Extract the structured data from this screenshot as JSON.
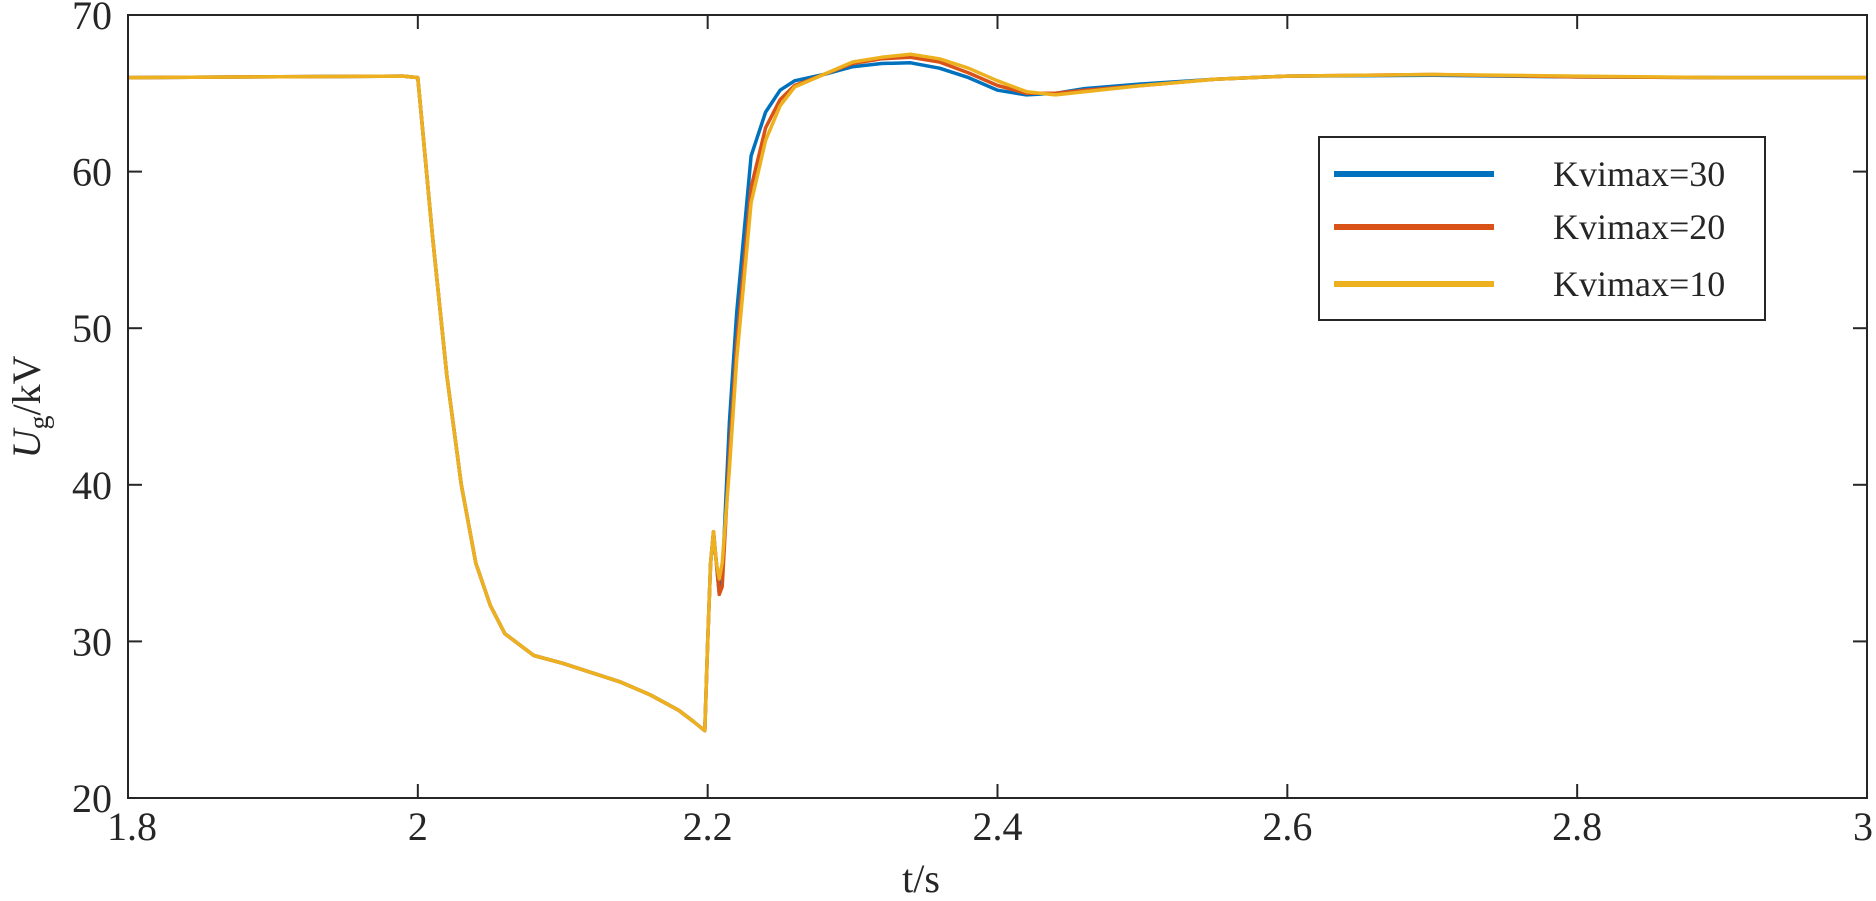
{
  "chart_data": {
    "type": "line",
    "xlabel": "t/s",
    "ylabel": {
      "main": "U",
      "sub": "g",
      "unit": "/kV"
    },
    "xlim": [
      1.8,
      3.0
    ],
    "ylim": [
      20,
      70
    ],
    "xticks": [
      1.8,
      2,
      2.2,
      2.4,
      2.6,
      2.8,
      3
    ],
    "xtick_labels": [
      "1.8",
      "2",
      "2.2",
      "2.4",
      "2.6",
      "2.8",
      "3"
    ],
    "yticks": [
      20,
      30,
      40,
      50,
      60,
      70
    ],
    "ytick_labels": [
      "20",
      "30",
      "40",
      "50",
      "60",
      "70"
    ],
    "grid": false,
    "legend_position": "upper-right",
    "series": [
      {
        "name": "Kvimax=30",
        "color": "#0072BD",
        "points": [
          [
            1.8,
            66
          ],
          [
            1.99,
            66.1
          ],
          [
            2.0,
            66
          ],
          [
            2.01,
            56
          ],
          [
            2.02,
            47
          ],
          [
            2.03,
            40
          ],
          [
            2.04,
            35
          ],
          [
            2.05,
            32.3
          ],
          [
            2.06,
            30.5
          ],
          [
            2.08,
            29.1
          ],
          [
            2.1,
            28.6
          ],
          [
            2.12,
            28
          ],
          [
            2.14,
            27.4
          ],
          [
            2.16,
            26.6
          ],
          [
            2.18,
            25.6
          ],
          [
            2.19,
            24.9
          ],
          [
            2.198,
            24.3
          ],
          [
            2.2,
            30
          ],
          [
            2.202,
            35
          ],
          [
            2.204,
            37
          ],
          [
            2.206,
            35
          ],
          [
            2.208,
            33
          ],
          [
            2.21,
            34
          ],
          [
            2.215,
            44
          ],
          [
            2.22,
            51
          ],
          [
            2.225,
            56
          ],
          [
            2.23,
            61
          ],
          [
            2.24,
            63.8
          ],
          [
            2.25,
            65.2
          ],
          [
            2.26,
            65.8
          ],
          [
            2.28,
            66.2
          ],
          [
            2.3,
            66.7
          ],
          [
            2.32,
            66.9
          ],
          [
            2.34,
            66.95
          ],
          [
            2.36,
            66.6
          ],
          [
            2.38,
            66
          ],
          [
            2.4,
            65.2
          ],
          [
            2.42,
            64.9
          ],
          [
            2.44,
            65
          ],
          [
            2.46,
            65.3
          ],
          [
            2.5,
            65.6
          ],
          [
            2.55,
            65.9
          ],
          [
            2.6,
            66.1
          ],
          [
            2.7,
            66.15
          ],
          [
            2.8,
            66.05
          ],
          [
            2.9,
            66
          ],
          [
            3.0,
            66
          ]
        ]
      },
      {
        "name": "Kvimax=20",
        "color": "#D95319",
        "points": [
          [
            1.8,
            66
          ],
          [
            1.99,
            66.1
          ],
          [
            2.0,
            66
          ],
          [
            2.01,
            56
          ],
          [
            2.02,
            47
          ],
          [
            2.03,
            40
          ],
          [
            2.04,
            35
          ],
          [
            2.05,
            32.3
          ],
          [
            2.06,
            30.5
          ],
          [
            2.08,
            29.1
          ],
          [
            2.1,
            28.6
          ],
          [
            2.12,
            28
          ],
          [
            2.14,
            27.4
          ],
          [
            2.16,
            26.6
          ],
          [
            2.18,
            25.6
          ],
          [
            2.19,
            24.9
          ],
          [
            2.198,
            24.3
          ],
          [
            2.2,
            30
          ],
          [
            2.202,
            35
          ],
          [
            2.204,
            37
          ],
          [
            2.206,
            35
          ],
          [
            2.208,
            33
          ],
          [
            2.21,
            33.5
          ],
          [
            2.215,
            42
          ],
          [
            2.22,
            49
          ],
          [
            2.225,
            54
          ],
          [
            2.23,
            59
          ],
          [
            2.24,
            62.8
          ],
          [
            2.25,
            64.6
          ],
          [
            2.26,
            65.5
          ],
          [
            2.28,
            66.2
          ],
          [
            2.3,
            66.9
          ],
          [
            2.32,
            67.2
          ],
          [
            2.34,
            67.3
          ],
          [
            2.36,
            67
          ],
          [
            2.38,
            66.3
          ],
          [
            2.4,
            65.5
          ],
          [
            2.42,
            65
          ],
          [
            2.44,
            65
          ],
          [
            2.46,
            65.2
          ],
          [
            2.5,
            65.5
          ],
          [
            2.55,
            65.9
          ],
          [
            2.6,
            66.1
          ],
          [
            2.7,
            66.2
          ],
          [
            2.8,
            66.05
          ],
          [
            2.9,
            66
          ],
          [
            3.0,
            66
          ]
        ]
      },
      {
        "name": "Kvimax=10",
        "color": "#EDB120",
        "points": [
          [
            1.8,
            66
          ],
          [
            1.99,
            66.1
          ],
          [
            2.0,
            66
          ],
          [
            2.01,
            56
          ],
          [
            2.02,
            47
          ],
          [
            2.03,
            40
          ],
          [
            2.04,
            35
          ],
          [
            2.05,
            32.3
          ],
          [
            2.06,
            30.5
          ],
          [
            2.08,
            29.1
          ],
          [
            2.1,
            28.6
          ],
          [
            2.12,
            28
          ],
          [
            2.14,
            27.4
          ],
          [
            2.16,
            26.6
          ],
          [
            2.18,
            25.6
          ],
          [
            2.19,
            24.9
          ],
          [
            2.198,
            24.3
          ],
          [
            2.2,
            30
          ],
          [
            2.202,
            35
          ],
          [
            2.204,
            37
          ],
          [
            2.206,
            35
          ],
          [
            2.208,
            34
          ],
          [
            2.21,
            35
          ],
          [
            2.215,
            41
          ],
          [
            2.22,
            48
          ],
          [
            2.225,
            53
          ],
          [
            2.23,
            58
          ],
          [
            2.24,
            62
          ],
          [
            2.25,
            64.2
          ],
          [
            2.26,
            65.4
          ],
          [
            2.28,
            66.2
          ],
          [
            2.3,
            67
          ],
          [
            2.32,
            67.3
          ],
          [
            2.34,
            67.5
          ],
          [
            2.36,
            67.2
          ],
          [
            2.38,
            66.6
          ],
          [
            2.4,
            65.8
          ],
          [
            2.42,
            65.1
          ],
          [
            2.44,
            64.9
          ],
          [
            2.46,
            65.1
          ],
          [
            2.5,
            65.5
          ],
          [
            2.55,
            65.9
          ],
          [
            2.6,
            66.1
          ],
          [
            2.7,
            66.2
          ],
          [
            2.8,
            66.1
          ],
          [
            2.9,
            66
          ],
          [
            3.0,
            66
          ]
        ]
      }
    ]
  }
}
